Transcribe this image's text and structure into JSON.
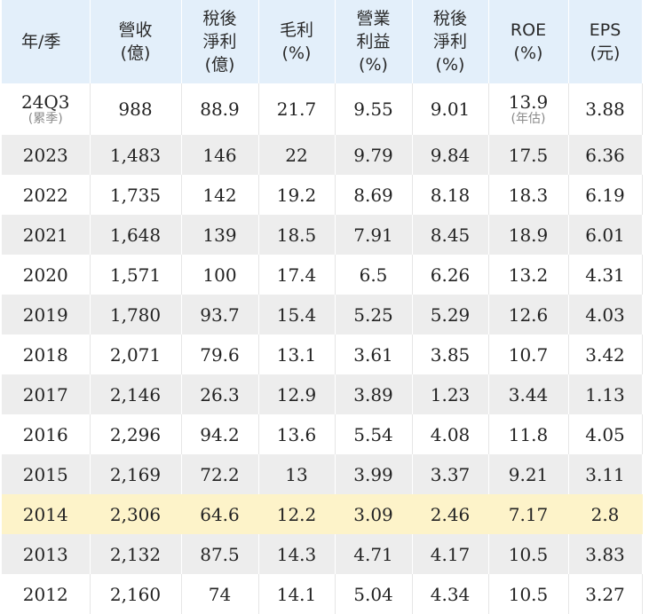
{
  "table": {
    "headers": [
      [
        "年/季"
      ],
      [
        "營收",
        "(億)"
      ],
      [
        "稅後",
        "淨利",
        "(億)"
      ],
      [
        "毛利",
        "(%)"
      ],
      [
        "營業",
        "利益",
        "(%)"
      ],
      [
        "稅後",
        "淨利",
        "(%)"
      ],
      [
        "ROE",
        "(%)"
      ],
      [
        "EPS",
        "(元)"
      ]
    ],
    "first_row": {
      "year": "24Q3",
      "year_note": "(累季)",
      "revenue": "988",
      "net_income": "88.9",
      "gross_margin": "21.7",
      "operating_margin": "9.55",
      "net_margin": "9.01",
      "roe": "13.9",
      "roe_note": "(年估)",
      "eps": "3.88"
    },
    "rows": [
      [
        "2023",
        "1,483",
        "146",
        "22",
        "9.79",
        "9.84",
        "17.5",
        "6.36"
      ],
      [
        "2022",
        "1,735",
        "142",
        "19.2",
        "8.69",
        "8.18",
        "18.3",
        "6.19"
      ],
      [
        "2021",
        "1,648",
        "139",
        "18.5",
        "7.91",
        "8.45",
        "18.9",
        "6.01"
      ],
      [
        "2020",
        "1,571",
        "100",
        "17.4",
        "6.5",
        "6.26",
        "13.2",
        "4.31"
      ],
      [
        "2019",
        "1,780",
        "93.7",
        "15.4",
        "5.25",
        "5.29",
        "12.6",
        "4.03"
      ],
      [
        "2018",
        "2,071",
        "79.6",
        "13.1",
        "3.61",
        "3.85",
        "10.7",
        "3.42"
      ],
      [
        "2017",
        "2,146",
        "26.3",
        "12.9",
        "3.89",
        "1.23",
        "3.44",
        "1.13"
      ],
      [
        "2016",
        "2,296",
        "94.2",
        "13.6",
        "5.54",
        "4.08",
        "11.8",
        "4.05"
      ],
      [
        "2015",
        "2,169",
        "72.2",
        "13",
        "3.99",
        "3.37",
        "9.21",
        "3.11"
      ],
      [
        "2014",
        "2,306",
        "64.6",
        "12.2",
        "3.09",
        "2.46",
        "7.17",
        "2.8"
      ],
      [
        "2013",
        "2,132",
        "87.5",
        "14.3",
        "4.71",
        "4.17",
        "10.5",
        "3.83"
      ],
      [
        "2012",
        "2,160",
        "74",
        "14.1",
        "5.04",
        "4.34",
        "10.5",
        "3.27"
      ]
    ],
    "highlight_year": "2014",
    "colors": {
      "header_bg": "#e3effa",
      "stripe_bg": "#ededed",
      "highlight_bg": "#fdf3c9"
    }
  }
}
